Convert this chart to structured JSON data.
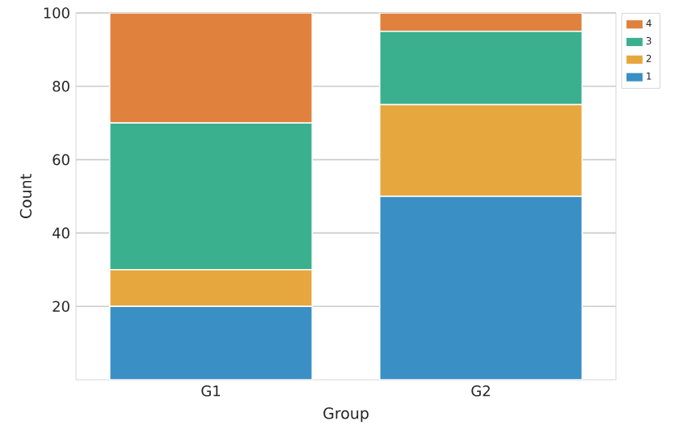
{
  "chart_data": {
    "type": "bar",
    "stacked": true,
    "xlabel": "Group",
    "ylabel": "Count",
    "categories": [
      "G1",
      "G2"
    ],
    "series": [
      {
        "name": "1",
        "color": "#3a8fc4",
        "values": [
          20,
          50
        ]
      },
      {
        "name": "2",
        "color": "#e6a73e",
        "values": [
          10,
          25
        ]
      },
      {
        "name": "3",
        "color": "#3ab08f",
        "values": [
          40,
          20
        ]
      },
      {
        "name": "4",
        "color": "#e0813e",
        "values": [
          30,
          5
        ]
      }
    ],
    "ylim": [
      0,
      100
    ],
    "yticks": [
      20,
      40,
      60,
      80,
      100
    ],
    "grid": true,
    "legend": "top right"
  }
}
